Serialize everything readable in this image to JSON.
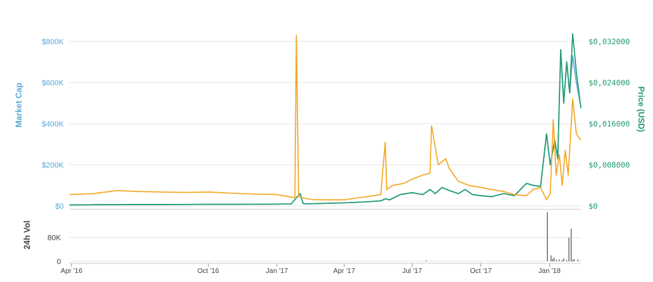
{
  "chart_data": {
    "type": "line",
    "left_axis": {
      "title": "Market Cap",
      "ticks": [
        "$0",
        "$200K",
        "$400K",
        "$600K",
        "$800K"
      ],
      "tick_values": [
        0,
        200000,
        400000,
        600000,
        800000
      ],
      "ylim": [
        0,
        850000
      ],
      "color": "#5aa9d6"
    },
    "right_axis": {
      "title": "Price (USD)",
      "ticks": [
        "$0",
        "$0,008000",
        "$0,016000",
        "$0,024000",
        "$0,032000"
      ],
      "tick_values": [
        0,
        0.008,
        0.016,
        0.024,
        0.032
      ],
      "ylim": [
        0,
        0.034
      ],
      "color": "#1e9a6f"
    },
    "volume_axis": {
      "title": "24h Vol",
      "ticks": [
        "0",
        "80K"
      ],
      "tick_values": [
        0,
        80000
      ],
      "ylim": [
        0,
        170000
      ]
    },
    "x_axis": {
      "ticks": [
        "Apr '16",
        "Oct '16",
        "Jan '17",
        "Apr '17",
        "Jul '17",
        "Oct '17",
        "Jan '18"
      ],
      "tick_dates": [
        "2016-04-01",
        "2016-10-01",
        "2017-01-01",
        "2017-04-01",
        "2017-07-01",
        "2017-10-01",
        "2018-01-01"
      ],
      "range": [
        "2016-03-29",
        "2018-02-12"
      ]
    },
    "grid": true,
    "series": [
      {
        "axis": "left",
        "color": "#5aa9d6",
        "x": [
          "2016-03-29",
          "2016-05-01",
          "2016-06-01",
          "2016-07-01",
          "2016-08-01",
          "2016-09-01",
          "2016-10-01",
          "2016-11-01",
          "2016-12-01",
          "2017-01-01",
          "2017-01-20",
          "2017-02-01",
          "2017-02-05",
          "2017-02-10",
          "2017-03-01",
          "2017-04-01",
          "2017-05-01",
          "2017-05-20",
          "2017-05-26",
          "2017-06-01",
          "2017-06-15",
          "2017-07-01",
          "2017-07-15",
          "2017-07-25",
          "2017-08-01",
          "2017-08-10",
          "2017-08-20",
          "2017-09-01",
          "2017-09-10",
          "2017-09-20",
          "2017-10-01",
          "2017-10-15",
          "2017-11-01",
          "2017-11-15",
          "2017-12-01",
          "2017-12-10",
          "2017-12-20",
          "2017-12-28",
          "2018-01-02",
          "2018-01-08",
          "2018-01-12",
          "2018-01-16",
          "2018-01-20",
          "2018-01-24",
          "2018-01-28",
          "2018-02-01",
          "2018-02-06",
          "2018-02-12"
        ],
        "values": [
          5000,
          6000,
          6500,
          7000,
          7000,
          7500,
          8000,
          8000,
          8500,
          9000,
          10000,
          60000,
          12000,
          10000,
          12000,
          15000,
          20000,
          25000,
          35000,
          30000,
          55000,
          65000,
          55000,
          80000,
          60000,
          90000,
          75000,
          60000,
          80000,
          55000,
          50000,
          45000,
          60000,
          50000,
          110000,
          100000,
          95000,
          350000,
          200000,
          320000,
          230000,
          760000,
          500000,
          700000,
          550000,
          730000,
          600000,
          480000
        ]
      },
      {
        "axis": "right",
        "color": "#1e9a6f",
        "x": [
          "2016-03-29",
          "2016-05-01",
          "2016-06-01",
          "2016-07-01",
          "2016-08-01",
          "2016-09-01",
          "2016-10-01",
          "2016-11-01",
          "2016-12-01",
          "2017-01-01",
          "2017-01-20",
          "2017-02-01",
          "2017-02-05",
          "2017-02-10",
          "2017-03-01",
          "2017-04-01",
          "2017-05-01",
          "2017-05-20",
          "2017-05-26",
          "2017-06-01",
          "2017-06-15",
          "2017-07-01",
          "2017-07-15",
          "2017-07-25",
          "2017-08-01",
          "2017-08-10",
          "2017-08-20",
          "2017-09-01",
          "2017-09-10",
          "2017-09-20",
          "2017-10-01",
          "2017-10-15",
          "2017-11-01",
          "2017-11-15",
          "2017-12-01",
          "2017-12-10",
          "2017-12-20",
          "2017-12-28",
          "2018-01-02",
          "2018-01-08",
          "2018-01-12",
          "2018-01-16",
          "2018-01-20",
          "2018-01-24",
          "2018-01-28",
          "2018-02-01",
          "2018-02-06",
          "2018-02-12"
        ],
        "values": [
          0.0002,
          0.00024,
          0.00026,
          0.00028,
          0.00028,
          0.0003,
          0.00032,
          0.00032,
          0.00034,
          0.00036,
          0.0004,
          0.0024,
          0.00048,
          0.0004,
          0.00048,
          0.0006,
          0.0008,
          0.001,
          0.0014,
          0.0012,
          0.0022,
          0.0026,
          0.0022,
          0.0032,
          0.0024,
          0.0036,
          0.003,
          0.0024,
          0.0032,
          0.0022,
          0.002,
          0.0018,
          0.0024,
          0.002,
          0.0044,
          0.004,
          0.0038,
          0.014,
          0.008,
          0.0128,
          0.0092,
          0.0304,
          0.02,
          0.028,
          0.022,
          0.0335,
          0.026,
          0.019
        ]
      },
      {
        "axis": "left",
        "color": "#f5a623",
        "x": [
          "2016-03-29",
          "2016-05-01",
          "2016-06-01",
          "2016-07-01",
          "2016-08-01",
          "2016-09-01",
          "2016-10-01",
          "2016-11-01",
          "2016-12-01",
          "2017-01-01",
          "2017-01-25",
          "2017-01-27",
          "2017-01-30",
          "2017-02-15",
          "2017-03-01",
          "2017-04-01",
          "2017-05-01",
          "2017-05-20",
          "2017-05-26",
          "2017-05-28",
          "2017-06-05",
          "2017-06-20",
          "2017-07-01",
          "2017-07-15",
          "2017-07-25",
          "2017-07-27",
          "2017-08-05",
          "2017-08-15",
          "2017-08-20",
          "2017-09-01",
          "2017-09-15",
          "2017-10-01",
          "2017-10-15",
          "2017-11-01",
          "2017-11-15",
          "2017-12-01",
          "2017-12-10",
          "2017-12-20",
          "2017-12-28",
          "2018-01-02",
          "2018-01-06",
          "2018-01-10",
          "2018-01-14",
          "2018-01-18",
          "2018-01-22",
          "2018-01-26",
          "2018-02-01",
          "2018-02-06",
          "2018-02-12"
        ],
        "values": [
          55000,
          60000,
          75000,
          70000,
          68000,
          66000,
          68000,
          62000,
          58000,
          55000,
          40000,
          830000,
          45000,
          32000,
          30000,
          30000,
          45000,
          55000,
          310000,
          80000,
          100000,
          110000,
          130000,
          150000,
          160000,
          390000,
          200000,
          230000,
          180000,
          120000,
          100000,
          90000,
          80000,
          70000,
          55000,
          50000,
          80000,
          90000,
          30000,
          60000,
          420000,
          150000,
          250000,
          100000,
          270000,
          150000,
          520000,
          350000,
          320000
        ]
      }
    ],
    "volume": {
      "x": [
        "2017-07-20",
        "2017-12-29",
        "2018-01-03",
        "2018-01-05",
        "2018-01-07",
        "2018-01-10",
        "2018-01-14",
        "2018-01-18",
        "2018-01-20",
        "2018-01-24",
        "2018-01-27",
        "2018-01-30",
        "2018-02-01",
        "2018-02-03",
        "2018-02-08"
      ],
      "values": [
        3000,
        165000,
        20000,
        8000,
        12000,
        5000,
        6000,
        4000,
        9000,
        4000,
        80000,
        110000,
        5000,
        7000,
        6000
      ]
    }
  }
}
